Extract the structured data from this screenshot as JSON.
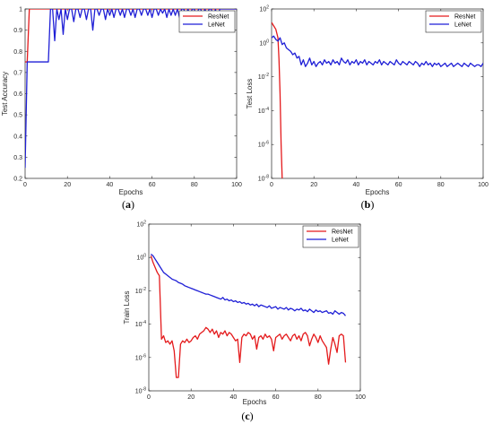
{
  "colors": {
    "resnet": "#e41a1c",
    "lenet": "#1f1fd6",
    "axis": "#262626"
  },
  "chart_data": [
    {
      "id": "a",
      "type": "line",
      "panel_label": "a",
      "xlabel": "Epochs",
      "ylabel": "Test Accuracy",
      "xlim": [
        0,
        100
      ],
      "ylim": [
        0.2,
        1
      ],
      "yscale": "linear",
      "xticks": [
        0,
        20,
        40,
        60,
        80,
        100
      ],
      "yticks": [
        0.2,
        0.3,
        0.4,
        0.5,
        0.6,
        0.7,
        0.8,
        0.9,
        1
      ],
      "ytick_labels": [
        "0.2",
        "0.3",
        "0.4",
        "0.5",
        "0.6",
        "0.7",
        "0.8",
        "0.9",
        "1"
      ],
      "legend": "top-right",
      "series": [
        {
          "name": "ResNet",
          "color": "#e41a1c",
          "x": [
            0,
            1,
            2,
            3,
            100
          ],
          "y": [
            0.75,
            0.75,
            1,
            1,
            1
          ]
        },
        {
          "name": "LeNet",
          "color": "#1f1fd6",
          "x": [
            0,
            1,
            2,
            3,
            4,
            5,
            6,
            7,
            8,
            9,
            10,
            11,
            12,
            13,
            14,
            15,
            16,
            17,
            18,
            19,
            20,
            21,
            22,
            23,
            24,
            25,
            26,
            27,
            28,
            29,
            30,
            31,
            32,
            33,
            34,
            35,
            36,
            37,
            38,
            39,
            40,
            41,
            42,
            43,
            44,
            45,
            46,
            47,
            48,
            49,
            50,
            51,
            52,
            53,
            54,
            55,
            56,
            57,
            58,
            59,
            60,
            61,
            62,
            63,
            64,
            65,
            66,
            67,
            68,
            69,
            70,
            71,
            72,
            73,
            74,
            75,
            76,
            77,
            78,
            79,
            80,
            81,
            82,
            83,
            84,
            85,
            86,
            87,
            88,
            89,
            90,
            91,
            92,
            93,
            94,
            95,
            96,
            97,
            98,
            99,
            100
          ],
          "y": [
            0.25,
            0.75,
            0.75,
            0.75,
            0.75,
            0.75,
            0.75,
            0.75,
            0.75,
            0.75,
            0.75,
            0.75,
            1,
            1,
            0.85,
            1,
            0.95,
            1,
            0.88,
            1,
            0.95,
            1,
            1,
            0.94,
            1,
            1,
            0.96,
            1,
            1,
            0.95,
            1,
            1,
            0.9,
            1,
            1,
            0.97,
            1,
            1,
            0.95,
            1,
            0.97,
            1,
            0.96,
            1,
            1,
            0.97,
            1,
            0.96,
            1,
            1,
            0.97,
            1,
            0.96,
            1,
            1,
            0.97,
            1,
            1,
            0.97,
            1,
            0.96,
            1,
            1,
            0.97,
            1,
            0.98,
            1,
            0.96,
            1,
            0.97,
            1,
            0.97,
            1,
            0.96,
            1,
            1,
            0.97,
            1,
            0.97,
            1,
            1,
            0.96,
            1,
            1,
            0.97,
            1,
            0.97,
            1,
            1,
            0.96,
            1,
            0.93,
            1,
            1,
            1,
            1,
            1,
            1,
            1,
            1,
            1
          ]
        }
      ]
    },
    {
      "id": "b",
      "type": "line",
      "panel_label": "b",
      "xlabel": "Epochs",
      "ylabel": "Test Loss",
      "xlim": [
        0,
        100
      ],
      "ylim": [
        -8,
        2
      ],
      "yscale": "log10",
      "xticks": [
        0,
        20,
        40,
        60,
        80,
        100
      ],
      "yticks": [
        -8,
        -6,
        -4,
        -2,
        0,
        2
      ],
      "ytick_labels": [
        "10",
        "10",
        "10",
        "10",
        "10",
        "10"
      ],
      "ytick_exponents": [
        "-8",
        "-6",
        "-4",
        "-2",
        "0",
        "2"
      ],
      "legend": "top-right",
      "series": [
        {
          "name": "ResNet",
          "color": "#e41a1c",
          "x": [
            0,
            1,
            2,
            3,
            3.5,
            4,
            4.5,
            5
          ],
          "y": [
            1.2,
            1.0,
            0.8,
            0.3,
            -1,
            -3,
            -6,
            -8
          ]
        },
        {
          "name": "LeNet",
          "color": "#1f1fd6",
          "x": [
            0,
            1,
            2,
            3,
            4,
            5,
            6,
            7,
            8,
            9,
            10,
            11,
            12,
            13,
            14,
            15,
            16,
            17,
            18,
            19,
            20,
            21,
            22,
            23,
            24,
            25,
            26,
            27,
            28,
            29,
            30,
            31,
            32,
            33,
            34,
            35,
            36,
            37,
            38,
            39,
            40,
            41,
            42,
            43,
            44,
            45,
            46,
            47,
            48,
            49,
            50,
            51,
            52,
            53,
            54,
            55,
            56,
            57,
            58,
            59,
            60,
            61,
            62,
            63,
            64,
            65,
            66,
            67,
            68,
            69,
            70,
            71,
            72,
            73,
            74,
            75,
            76,
            77,
            78,
            79,
            80,
            81,
            82,
            83,
            84,
            85,
            86,
            87,
            88,
            89,
            90,
            91,
            92,
            93,
            94,
            95,
            96,
            97,
            98,
            99,
            100
          ],
          "y": [
            0.3,
            0.4,
            0.2,
            0.1,
            0.3,
            -0.1,
            0,
            -0.3,
            -0.4,
            -0.5,
            -0.7,
            -0.6,
            -0.9,
            -0.8,
            -1.3,
            -1.0,
            -1.4,
            -1.2,
            -0.9,
            -1.3,
            -1.1,
            -1.4,
            -1.2,
            -1.1,
            -1.3,
            -1.0,
            -1.2,
            -1.1,
            -1.3,
            -1.0,
            -1.2,
            -1.1,
            -1.3,
            -0.9,
            -1.1,
            -1.2,
            -1.0,
            -1.3,
            -1.1,
            -1.2,
            -1.0,
            -1.3,
            -1.1,
            -1.2,
            -1.0,
            -1.3,
            -1.1,
            -1.2,
            -1.3,
            -1.1,
            -1.2,
            -1.0,
            -1.3,
            -1.1,
            -1.2,
            -1.3,
            -1.1,
            -1.2,
            -1.3,
            -1.0,
            -1.2,
            -1.3,
            -1.1,
            -1.2,
            -1.3,
            -1.1,
            -1.2,
            -1.3,
            -1.1,
            -1.2,
            -1.4,
            -1.2,
            -1.3,
            -1.1,
            -1.3,
            -1.2,
            -1.4,
            -1.2,
            -1.3,
            -1.2,
            -1.4,
            -1.3,
            -1.2,
            -1.4,
            -1.3,
            -1.2,
            -1.4,
            -1.3,
            -1.2,
            -1.3,
            -1.4,
            -1.2,
            -1.3,
            -1.4,
            -1.2,
            -1.3,
            -1.4,
            -1.3,
            -1.3,
            -1.4,
            -1.2
          ]
        }
      ]
    },
    {
      "id": "c",
      "type": "line",
      "panel_label": "c",
      "xlabel": "Epochs",
      "ylabel": "Train Loss",
      "xlim": [
        0,
        100
      ],
      "ylim": [
        -8,
        2
      ],
      "yscale": "log10",
      "xticks": [
        0,
        20,
        40,
        60,
        80,
        100
      ],
      "yticks": [
        -8,
        -6,
        -4,
        -2,
        0,
        2
      ],
      "ytick_labels": [
        "10",
        "10",
        "10",
        "10",
        "10",
        "10"
      ],
      "ytick_exponents": [
        "-8",
        "-6",
        "-4",
        "-2",
        "0",
        "2"
      ],
      "legend": "top-right",
      "series": [
        {
          "name": "ResNet",
          "color": "#e41a1c",
          "x": [
            1,
            2,
            3,
            4,
            5,
            6,
            7,
            8,
            9,
            10,
            11,
            12,
            13,
            14,
            15,
            16,
            17,
            18,
            19,
            20,
            21,
            22,
            23,
            24,
            25,
            26,
            27,
            28,
            29,
            30,
            31,
            32,
            33,
            34,
            35,
            36,
            37,
            38,
            39,
            40,
            41,
            42,
            43,
            44,
            45,
            46,
            47,
            48,
            49,
            50,
            51,
            52,
            53,
            54,
            55,
            56,
            57,
            58,
            59,
            60,
            61,
            62,
            63,
            64,
            65,
            66,
            67,
            68,
            69,
            70,
            71,
            72,
            73,
            74,
            75,
            76,
            77,
            78,
            79,
            80,
            81,
            82,
            83,
            84,
            85,
            86,
            87,
            88,
            89,
            90,
            91,
            92,
            93
          ],
          "y": [
            0.1,
            -0.3,
            -0.6,
            -0.9,
            -1.1,
            -4.9,
            -4.7,
            -5.1,
            -5.0,
            -5.2,
            -5.0,
            -5.6,
            -7.2,
            -7.2,
            -5.2,
            -5.0,
            -5.1,
            -4.9,
            -5.1,
            -5.0,
            -4.8,
            -4.7,
            -4.9,
            -4.6,
            -4.5,
            -4.4,
            -4.2,
            -4.3,
            -4.5,
            -4.3,
            -4.6,
            -4.4,
            -4.8,
            -4.5,
            -4.6,
            -4.4,
            -4.7,
            -4.5,
            -4.6,
            -4.8,
            -5.0,
            -4.9,
            -6.3,
            -4.8,
            -4.6,
            -4.7,
            -4.5,
            -4.6,
            -4.9,
            -4.7,
            -5.5,
            -4.8,
            -4.7,
            -4.9,
            -4.6,
            -4.8,
            -4.7,
            -4.9,
            -5.6,
            -4.8,
            -4.7,
            -4.6,
            -4.9,
            -4.7,
            -4.6,
            -4.8,
            -5.0,
            -4.7,
            -4.6,
            -4.9,
            -4.7,
            -5.0,
            -4.6,
            -4.5,
            -4.7,
            -5.3,
            -4.9,
            -4.6,
            -4.8,
            -5.1,
            -4.7,
            -5.0,
            -5.2,
            -5.4,
            -6.4,
            -5.5,
            -4.8,
            -5.2,
            -5.7,
            -4.7,
            -4.6,
            -4.7,
            -6.3
          ]
        },
        {
          "name": "LeNet",
          "color": "#1f1fd6",
          "x": [
            1,
            2,
            3,
            4,
            5,
            6,
            7,
            8,
            9,
            10,
            11,
            12,
            13,
            14,
            15,
            16,
            17,
            18,
            19,
            20,
            21,
            22,
            23,
            24,
            25,
            26,
            27,
            28,
            29,
            30,
            31,
            32,
            33,
            34,
            35,
            36,
            37,
            38,
            39,
            40,
            41,
            42,
            43,
            44,
            45,
            46,
            47,
            48,
            49,
            50,
            51,
            52,
            53,
            54,
            55,
            56,
            57,
            58,
            59,
            60,
            61,
            62,
            63,
            64,
            65,
            66,
            67,
            68,
            69,
            70,
            71,
            72,
            73,
            74,
            75,
            76,
            77,
            78,
            79,
            80,
            81,
            82,
            83,
            84,
            85,
            86,
            87,
            88,
            89,
            90,
            91,
            92,
            93
          ],
          "y": [
            0.2,
            0.1,
            -0.1,
            -0.3,
            -0.5,
            -0.7,
            -0.9,
            -1.0,
            -1.1,
            -1.2,
            -1.3,
            -1.35,
            -1.4,
            -1.5,
            -1.55,
            -1.6,
            -1.7,
            -1.75,
            -1.8,
            -1.85,
            -1.9,
            -1.95,
            -2.0,
            -2.05,
            -2.1,
            -2.15,
            -2.2,
            -2.2,
            -2.25,
            -2.3,
            -2.35,
            -2.4,
            -2.45,
            -2.5,
            -2.4,
            -2.55,
            -2.5,
            -2.6,
            -2.55,
            -2.65,
            -2.6,
            -2.7,
            -2.65,
            -2.75,
            -2.7,
            -2.8,
            -2.75,
            -2.85,
            -2.8,
            -2.9,
            -2.8,
            -2.95,
            -2.85,
            -2.9,
            -2.95,
            -3.0,
            -2.9,
            -3.05,
            -3.0,
            -2.95,
            -3.1,
            -3.0,
            -3.05,
            -3.1,
            -3.0,
            -3.15,
            -3.05,
            -3.1,
            -3.2,
            -3.1,
            -3.15,
            -3.05,
            -3.2,
            -3.15,
            -3.25,
            -3.1,
            -3.2,
            -3.3,
            -3.15,
            -3.25,
            -3.2,
            -3.3,
            -3.25,
            -3.2,
            -3.35,
            -3.3,
            -3.4,
            -3.2,
            -3.3,
            -3.4,
            -3.3,
            -3.35,
            -3.5
          ]
        }
      ]
    }
  ]
}
